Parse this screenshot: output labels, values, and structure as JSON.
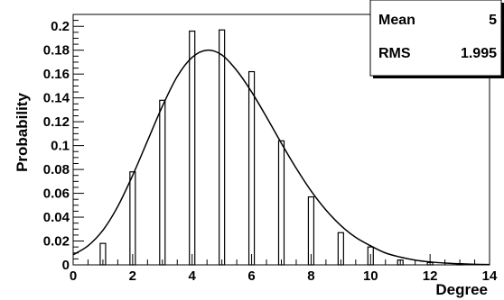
{
  "chart_data": {
    "type": "bar",
    "xlabel": "Degree",
    "ylabel": "Probability",
    "xlim": [
      0,
      14
    ],
    "ylim": [
      0,
      0.21
    ],
    "grid": false,
    "x_ticks": [
      0,
      2,
      4,
      6,
      8,
      10,
      12,
      14
    ],
    "y_ticks": [
      0,
      0.02,
      0.04,
      0.06,
      0.08,
      0.1,
      0.12,
      0.14,
      0.16,
      0.18,
      0.2
    ],
    "x_tick_labels": [
      "0",
      "2",
      "4",
      "6",
      "8",
      "10",
      "12",
      "14"
    ],
    "y_tick_labels": [
      "0",
      "0.02",
      "0.04",
      "0.06",
      "0.08",
      "0.1",
      "0.12",
      "0.14",
      "0.16",
      "0.18",
      "0.2"
    ],
    "series": [
      {
        "type": "bar",
        "x": [
          1,
          2,
          3,
          4,
          5,
          6,
          7,
          8,
          9,
          10,
          11,
          12,
          13
        ],
        "values": [
          0.018,
          0.078,
          0.138,
          0.196,
          0.197,
          0.162,
          0.104,
          0.057,
          0.027,
          0.015,
          0.004,
          0.002,
          0.001
        ]
      },
      {
        "type": "line",
        "x": [
          0,
          0.5,
          1,
          1.5,
          2,
          2.5,
          3,
          3.5,
          4,
          4.5,
          5,
          5.5,
          6,
          6.5,
          7,
          7.5,
          8,
          8.5,
          9,
          9.5,
          10,
          10.5,
          11,
          11.5,
          12,
          12.5,
          13,
          13.5,
          14
        ],
        "values": [
          0.0085,
          0.016,
          0.029,
          0.049,
          0.075,
          0.104,
          0.133,
          0.158,
          0.174,
          0.18,
          0.176,
          0.163,
          0.145,
          0.124,
          0.102,
          0.081,
          0.062,
          0.046,
          0.033,
          0.023,
          0.016,
          0.01,
          0.0065,
          0.004,
          0.0025,
          0.0015,
          0.0009,
          0.0005,
          0.0003
        ]
      }
    ],
    "stats_box": {
      "placement": "top-right",
      "rows": [
        {
          "label": "Mean",
          "value": "5"
        },
        {
          "label": "RMS",
          "value": "1.995"
        }
      ]
    }
  }
}
